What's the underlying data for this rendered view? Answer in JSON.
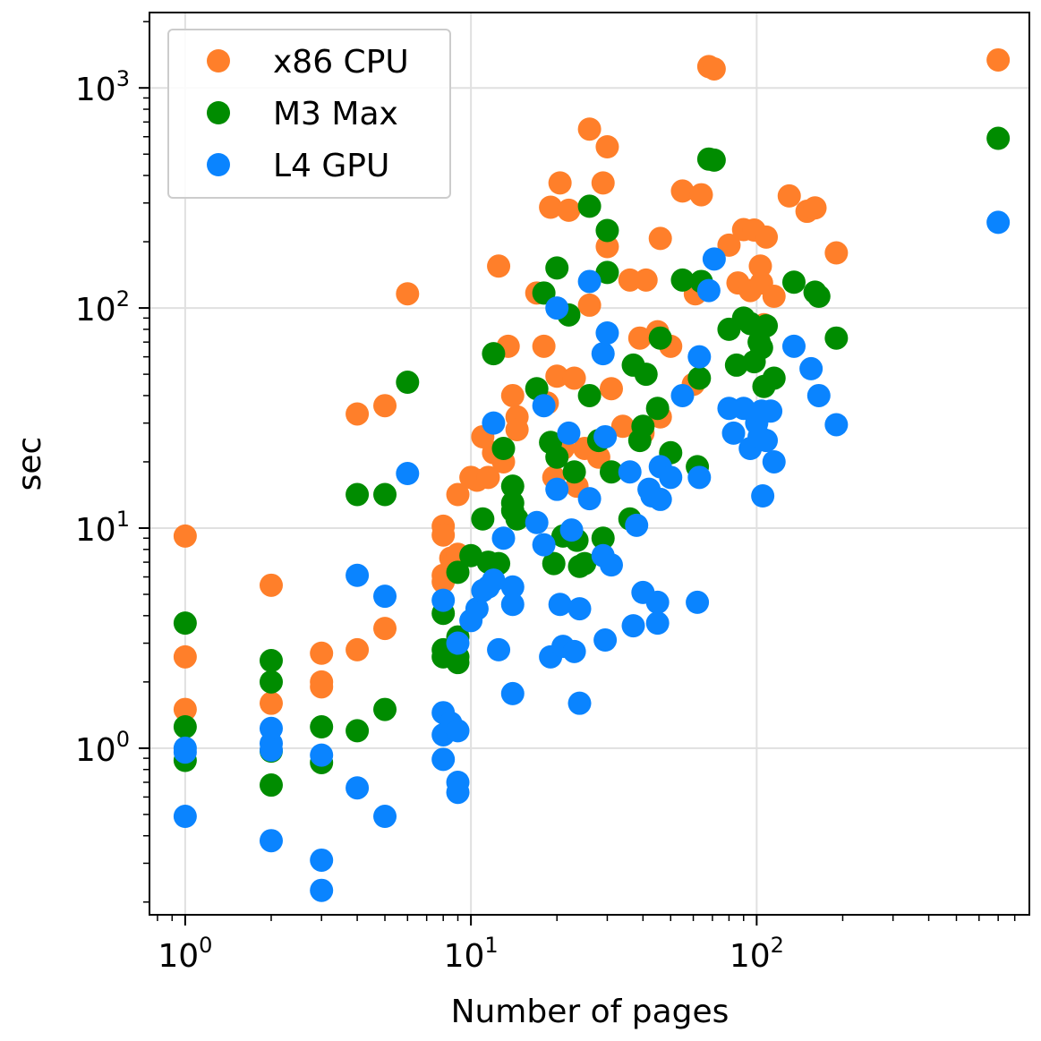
{
  "chart_data": {
    "type": "scatter",
    "xlabel": "Number of pages",
    "ylabel": "sec",
    "xscale": "log",
    "yscale": "log",
    "xlim": [
      0.75,
      900
    ],
    "ylim": [
      0.175,
      2200
    ],
    "grid": true,
    "legend_position": "top-left",
    "x_ticks": [
      {
        "base": "10",
        "exp": "0",
        "value": 1
      },
      {
        "base": "10",
        "exp": "1",
        "value": 10
      },
      {
        "base": "10",
        "exp": "2",
        "value": 100
      }
    ],
    "y_ticks": [
      {
        "base": "10",
        "exp": "0",
        "value": 1
      },
      {
        "base": "10",
        "exp": "1",
        "value": 10
      },
      {
        "base": "10",
        "exp": "2",
        "value": 100
      },
      {
        "base": "10",
        "exp": "3",
        "value": 1000
      }
    ],
    "series": [
      {
        "name": "x86 CPU",
        "color": "#ff7f2a",
        "points": [
          [
            1,
            9.2
          ],
          [
            1,
            2.6
          ],
          [
            1,
            1.5
          ],
          [
            2,
            5.5
          ],
          [
            2,
            1.6
          ],
          [
            3,
            2.7
          ],
          [
            3,
            2.0
          ],
          [
            3,
            1.9
          ],
          [
            4,
            33
          ],
          [
            4,
            2.8
          ],
          [
            5,
            36
          ],
          [
            5,
            3.5
          ],
          [
            6,
            116
          ],
          [
            8,
            10.2
          ],
          [
            8,
            9.3
          ],
          [
            8,
            6.1
          ],
          [
            8,
            5.7
          ],
          [
            8.5,
            7.3
          ],
          [
            8.7,
            6.9
          ],
          [
            9,
            14.2
          ],
          [
            9,
            7.6
          ],
          [
            10,
            17
          ],
          [
            10.5,
            16.5
          ],
          [
            11,
            26
          ],
          [
            11.5,
            17
          ],
          [
            12,
            22
          ],
          [
            12.5,
            155
          ],
          [
            13,
            20
          ],
          [
            13.5,
            67
          ],
          [
            14,
            40
          ],
          [
            14.5,
            32
          ],
          [
            14.5,
            28
          ],
          [
            17,
            117
          ],
          [
            18,
            67
          ],
          [
            18.5,
            37
          ],
          [
            19,
            287
          ],
          [
            19.5,
            17
          ],
          [
            20,
            49
          ],
          [
            20.5,
            370
          ],
          [
            21,
            23
          ],
          [
            22,
            278
          ],
          [
            23,
            48
          ],
          [
            23.5,
            15.5
          ],
          [
            25,
            23
          ],
          [
            26,
            103
          ],
          [
            26,
            650
          ],
          [
            28,
            21
          ],
          [
            29,
            370
          ],
          [
            30,
            540
          ],
          [
            30,
            190
          ],
          [
            31,
            43
          ],
          [
            34,
            29
          ],
          [
            36,
            134
          ],
          [
            39,
            73
          ],
          [
            40,
            27
          ],
          [
            41,
            134
          ],
          [
            45,
            78
          ],
          [
            46,
            32
          ],
          [
            46,
            207
          ],
          [
            50,
            67
          ],
          [
            55,
            340
          ],
          [
            60,
            45
          ],
          [
            61,
            116
          ],
          [
            64,
            327
          ],
          [
            68,
            1250
          ],
          [
            71,
            1220
          ],
          [
            80,
            193
          ],
          [
            86,
            130
          ],
          [
            90,
            227
          ],
          [
            95,
            120
          ],
          [
            98,
            226
          ],
          [
            103,
            155
          ],
          [
            104,
            130
          ],
          [
            106,
            84
          ],
          [
            108,
            210
          ],
          [
            115,
            113
          ],
          [
            130,
            323
          ],
          [
            150,
            275
          ],
          [
            160,
            285
          ],
          [
            190,
            178
          ],
          [
            700,
            1340
          ]
        ]
      },
      {
        "name": "M3 Max",
        "color": "#008c00",
        "points": [
          [
            1,
            3.7
          ],
          [
            1,
            1.25
          ],
          [
            1,
            0.88
          ],
          [
            2,
            2.5
          ],
          [
            2,
            2.0
          ],
          [
            2,
            0.97
          ],
          [
            2,
            0.68
          ],
          [
            3,
            1.25
          ],
          [
            3,
            0.86
          ],
          [
            4,
            14.2
          ],
          [
            4,
            1.2
          ],
          [
            5,
            14.2
          ],
          [
            5,
            1.5
          ],
          [
            6,
            46
          ],
          [
            8,
            4.1
          ],
          [
            8,
            2.8
          ],
          [
            8,
            2.6
          ],
          [
            9,
            6.3
          ],
          [
            9,
            3.2
          ],
          [
            9,
            2.45
          ],
          [
            9,
            2.6
          ],
          [
            10,
            7.5
          ],
          [
            11,
            11
          ],
          [
            11.5,
            7
          ],
          [
            12,
            62
          ],
          [
            12.5,
            6.9
          ],
          [
            13,
            23
          ],
          [
            14,
            15.5
          ],
          [
            14,
            13
          ],
          [
            14,
            12
          ],
          [
            14.5,
            11
          ],
          [
            17,
            43
          ],
          [
            18,
            117
          ],
          [
            19,
            24.5
          ],
          [
            19.5,
            6.9
          ],
          [
            20,
            152
          ],
          [
            20,
            21
          ],
          [
            21,
            9.2
          ],
          [
            22,
            93
          ],
          [
            23,
            18
          ],
          [
            23.5,
            8.8
          ],
          [
            24,
            6.7
          ],
          [
            25,
            6.9
          ],
          [
            26,
            290
          ],
          [
            26,
            40
          ],
          [
            28,
            25
          ],
          [
            29,
            9
          ],
          [
            30,
            145
          ],
          [
            30,
            225
          ],
          [
            31,
            18
          ],
          [
            36,
            11
          ],
          [
            37,
            55
          ],
          [
            39,
            25
          ],
          [
            40,
            29
          ],
          [
            41,
            50
          ],
          [
            45,
            35
          ],
          [
            46,
            73
          ],
          [
            50,
            22
          ],
          [
            55,
            134
          ],
          [
            62,
            19
          ],
          [
            63,
            48
          ],
          [
            64,
            132
          ],
          [
            68,
            475
          ],
          [
            71,
            470
          ],
          [
            80,
            80
          ],
          [
            85,
            55
          ],
          [
            90,
            90
          ],
          [
            95,
            85
          ],
          [
            98,
            57
          ],
          [
            102,
            70
          ],
          [
            104,
            66
          ],
          [
            106,
            44
          ],
          [
            108,
            83
          ],
          [
            115,
            48
          ],
          [
            135,
            131
          ],
          [
            160,
            118
          ],
          [
            165,
            113
          ],
          [
            190,
            73
          ],
          [
            700,
            590
          ]
        ]
      },
      {
        "name": "L4 GPU",
        "color": "#0a84ff",
        "points": [
          [
            1,
            1.0
          ],
          [
            1,
            0.96
          ],
          [
            1,
            0.49
          ],
          [
            2,
            1.23
          ],
          [
            2,
            1.05
          ],
          [
            2,
            0.98
          ],
          [
            2,
            0.38
          ],
          [
            3,
            0.93
          ],
          [
            3,
            0.31
          ],
          [
            3,
            0.226
          ],
          [
            4,
            6.1
          ],
          [
            4,
            0.66
          ],
          [
            5,
            4.9
          ],
          [
            5,
            0.49
          ],
          [
            6,
            17.7
          ],
          [
            8,
            4.7
          ],
          [
            8,
            1.45
          ],
          [
            8,
            1.15
          ],
          [
            8,
            0.89
          ],
          [
            8.5,
            1.3
          ],
          [
            9,
            3.0
          ],
          [
            9,
            1.2
          ],
          [
            9,
            0.7
          ],
          [
            9,
            0.63
          ],
          [
            10,
            3.8
          ],
          [
            10.5,
            4.3
          ],
          [
            11,
            5.2
          ],
          [
            11.5,
            5.4
          ],
          [
            12,
            30
          ],
          [
            12,
            5.8
          ],
          [
            12.5,
            2.8
          ],
          [
            13,
            9
          ],
          [
            14,
            5.4
          ],
          [
            14,
            4.5
          ],
          [
            14,
            1.77
          ],
          [
            17,
            10.6
          ],
          [
            18,
            36
          ],
          [
            18,
            8.4
          ],
          [
            19,
            2.6
          ],
          [
            20,
            100
          ],
          [
            20,
            15
          ],
          [
            20.5,
            4.5
          ],
          [
            21,
            2.9
          ],
          [
            22,
            27
          ],
          [
            22.5,
            9.8
          ],
          [
            23,
            2.75
          ],
          [
            24,
            4.3
          ],
          [
            24,
            1.6
          ],
          [
            26,
            132
          ],
          [
            26,
            13.6
          ],
          [
            29,
            62
          ],
          [
            29,
            7.5
          ],
          [
            29.5,
            26
          ],
          [
            30,
            77
          ],
          [
            31,
            6.8
          ],
          [
            29.5,
            3.1
          ],
          [
            36,
            18
          ],
          [
            37,
            3.6
          ],
          [
            38,
            10.3
          ],
          [
            40,
            5.1
          ],
          [
            42,
            15
          ],
          [
            43,
            14
          ],
          [
            45,
            4.6
          ],
          [
            45,
            3.7
          ],
          [
            46,
            13.5
          ],
          [
            46,
            19
          ],
          [
            50,
            17
          ],
          [
            55,
            40
          ],
          [
            62,
            4.6
          ],
          [
            63,
            60
          ],
          [
            63,
            17
          ],
          [
            68,
            120
          ],
          [
            71,
            167
          ],
          [
            80,
            35
          ],
          [
            83,
            27
          ],
          [
            90,
            35
          ],
          [
            95,
            23
          ],
          [
            100,
            30
          ],
          [
            102,
            26
          ],
          [
            104,
            34
          ],
          [
            105,
            14
          ],
          [
            108,
            25
          ],
          [
            115,
            20
          ],
          [
            112,
            34
          ],
          [
            135,
            67
          ],
          [
            155,
            53
          ],
          [
            165,
            40
          ],
          [
            190,
            29.5
          ],
          [
            700,
            245
          ]
        ]
      }
    ]
  }
}
